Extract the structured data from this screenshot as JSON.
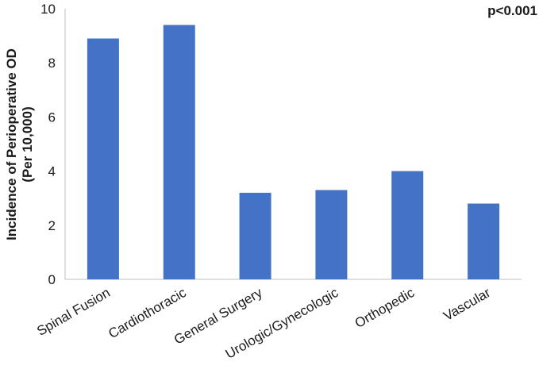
{
  "chart_data": {
    "type": "bar",
    "categories": [
      "Spinal Fusion",
      "Cardiothoracic",
      "General Surgery",
      "Urologic/Gynecologic",
      "Orthopedic",
      "Vascular"
    ],
    "values": [
      8.9,
      9.4,
      3.2,
      3.3,
      4.0,
      2.8
    ],
    "title": "",
    "xlabel": "",
    "ylabel_lines": [
      "Incidence of Perioperative OD",
      "(Per 10,000)"
    ],
    "ylim": [
      0,
      10
    ],
    "yticks": [
      "0",
      "2",
      "4",
      "6",
      "8",
      "10"
    ],
    "grid": false,
    "legend": "none",
    "annotation": "p<0.001",
    "bar_color": "#4472C4"
  }
}
